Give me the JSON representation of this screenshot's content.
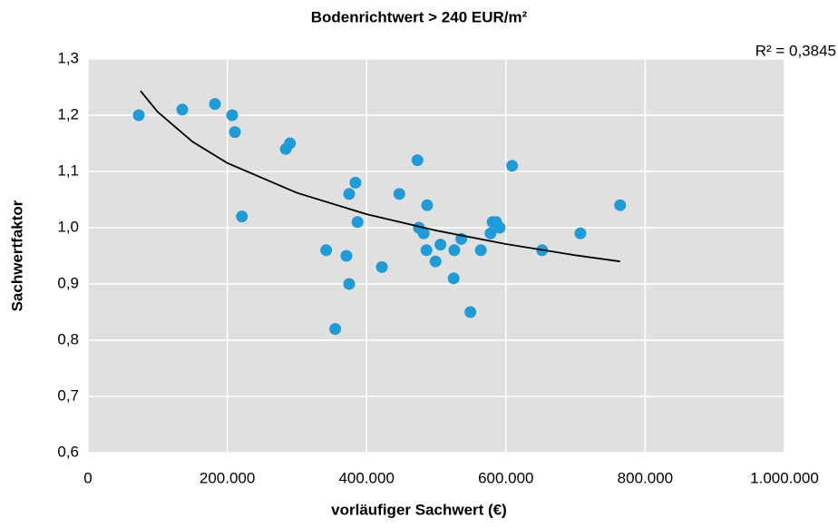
{
  "chart_data": {
    "type": "scatter",
    "title": "Bodenrichtwert > 240 EUR/m²",
    "xlabel": "vorläufiger Sachwert (€)",
    "ylabel": "Sachwertfaktor",
    "annotation": "R² = 0,3845",
    "color": "#1f9bd7",
    "grid": true,
    "xlim": [
      0,
      1000000
    ],
    "ylim": [
      0.6,
      1.3
    ],
    "xticks": [
      0,
      {
        "value": 200000,
        "label": "200.000"
      },
      {
        "value": 400000,
        "label": "400.000"
      },
      {
        "value": 600000,
        "label": "600.000"
      },
      {
        "value": 800000,
        "label": "800.000"
      },
      {
        "value": 1000000,
        "label": "1.000.000"
      }
    ],
    "yticks": [
      {
        "value": 0.6,
        "label": "0,6"
      },
      {
        "value": 0.7,
        "label": "0,7"
      },
      {
        "value": 0.8,
        "label": "0,8"
      },
      {
        "value": 0.9,
        "label": "0,9"
      },
      {
        "value": 1.0,
        "label": "1,0"
      },
      {
        "value": 1.1,
        "label": "1,1"
      },
      {
        "value": 1.2,
        "label": "1,2"
      },
      {
        "value": 1.3,
        "label": "1,3"
      }
    ],
    "x": [
      72900,
      135400,
      182300,
      211000,
      207000,
      221000,
      284000,
      290000,
      342000,
      355000,
      371000,
      375000,
      375000,
      384000,
      387000,
      422000,
      447000,
      473000,
      475000,
      482000,
      486000,
      487000,
      499000,
      506000,
      525000,
      526000,
      536000,
      549000,
      564000,
      578000,
      581000,
      586000,
      591000,
      609000,
      652000,
      707000,
      764000
    ],
    "values": [
      1.2,
      1.21,
      1.22,
      1.17,
      1.2,
      1.02,
      1.14,
      1.15,
      0.96,
      0.82,
      0.95,
      1.06,
      0.9,
      1.08,
      1.01,
      0.93,
      1.06,
      1.12,
      1.0,
      0.99,
      0.96,
      1.04,
      0.94,
      0.97,
      0.91,
      0.96,
      0.98,
      0.85,
      0.96,
      0.99,
      1.01,
      1.01,
      1.0,
      1.11,
      0.96,
      0.99,
      1.04
    ],
    "trendline": {
      "color": "#000000",
      "x": [
        75500,
        100000,
        150000,
        200000,
        300000,
        400000,
        500000,
        600000,
        700000,
        764000
      ],
      "values": [
        1.243,
        1.206,
        1.153,
        1.115,
        1.062,
        1.024,
        0.995,
        0.971,
        0.951,
        0.94
      ]
    }
  }
}
